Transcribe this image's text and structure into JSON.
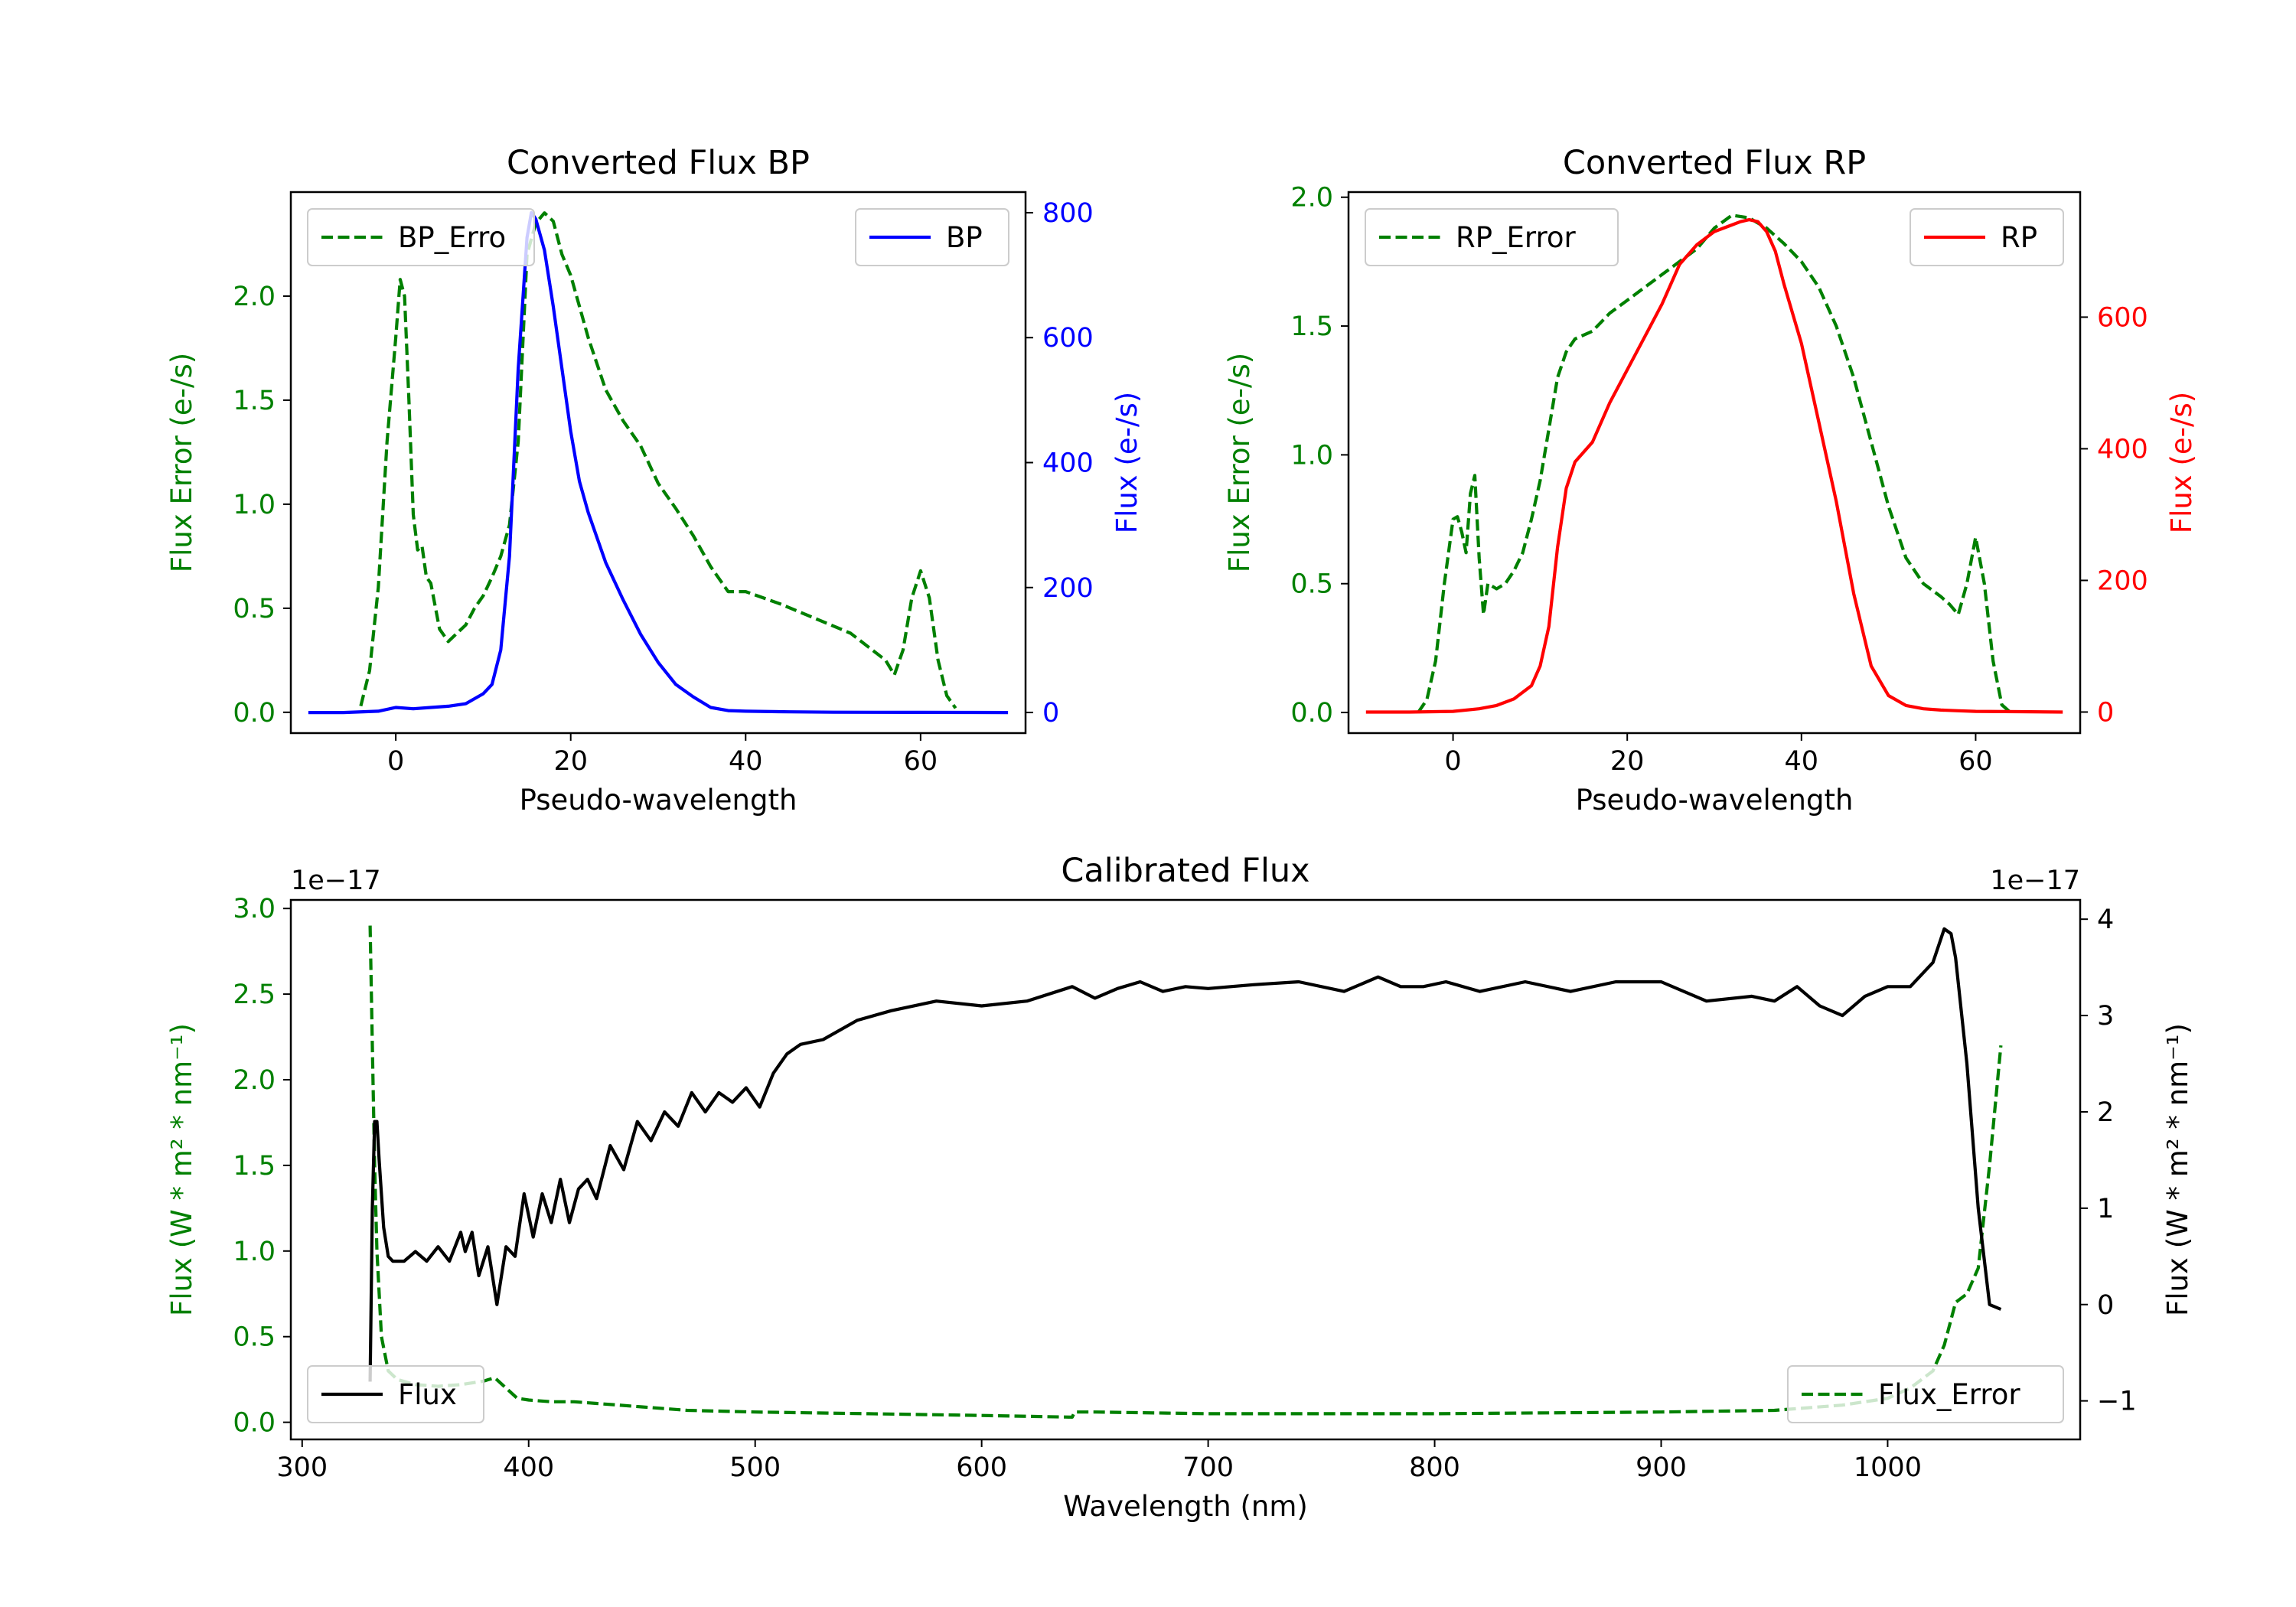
{
  "colors": {
    "error": "#008000",
    "bp": "#0000ff",
    "rp": "#ff0000",
    "flux": "#000000"
  },
  "chart_data": [
    {
      "type": "line",
      "title": "Converted Flux BP",
      "xlabel": "Pseudo-wavelength",
      "xlim": [
        -12,
        72
      ],
      "xticks": [
        0,
        20,
        40,
        60
      ],
      "left_axis": {
        "label": "Flux Error (e-/s)",
        "ylim": [
          -0.1,
          2.5
        ],
        "ticks": [
          0.0,
          0.5,
          1.0,
          1.5,
          2.0
        ],
        "tick_labels": [
          "0.0",
          "0.5",
          "1.0",
          "1.5",
          "2.0"
        ]
      },
      "right_axis": {
        "label": "Flux (e-/s)",
        "ylim": [
          -33,
          833
        ],
        "ticks": [
          0,
          200,
          400,
          600,
          800
        ],
        "tick_labels": [
          "0",
          "200",
          "400",
          "600",
          "800"
        ]
      },
      "series": [
        {
          "name": "BP_Error",
          "legend_label": "BP_Erro",
          "axis": "left",
          "style": "dashed",
          "color": "#008000",
          "x": [
            -4,
            -3,
            -2,
            -1,
            0,
            0.5,
            1,
            1.5,
            2,
            2.5,
            3,
            3.5,
            4,
            5,
            6,
            7,
            8,
            9,
            10,
            11,
            12,
            13,
            14,
            15,
            16,
            17,
            18,
            19,
            20,
            22,
            24,
            26,
            28,
            30,
            32,
            34,
            36,
            38,
            40,
            44,
            48,
            52,
            56,
            57,
            58,
            59,
            60,
            61,
            62,
            63,
            64
          ],
          "y": [
            0.03,
            0.2,
            0.6,
            1.3,
            1.8,
            2.08,
            2.0,
            1.5,
            0.95,
            0.78,
            0.8,
            0.65,
            0.62,
            0.4,
            0.34,
            0.38,
            0.42,
            0.5,
            0.56,
            0.65,
            0.75,
            0.9,
            1.3,
            2.2,
            2.35,
            2.4,
            2.36,
            2.2,
            2.1,
            1.8,
            1.55,
            1.4,
            1.28,
            1.1,
            0.98,
            0.85,
            0.7,
            0.58,
            0.58,
            0.52,
            0.45,
            0.38,
            0.25,
            0.18,
            0.3,
            0.55,
            0.68,
            0.55,
            0.25,
            0.08,
            0.02
          ]
        },
        {
          "name": "BP",
          "legend_label": "BP",
          "axis": "right",
          "style": "solid",
          "color": "#0000ff",
          "x": [
            -10,
            -6,
            -2,
            0,
            2,
            4,
            6,
            8,
            10,
            11,
            12,
            13,
            14,
            15,
            15.5,
            16,
            17,
            18,
            19,
            20,
            21,
            22,
            24,
            26,
            28,
            30,
            32,
            34,
            36,
            38,
            40,
            45,
            50,
            55,
            60,
            65,
            70
          ],
          "y": [
            0,
            0,
            2,
            8,
            6,
            8,
            10,
            14,
            30,
            45,
            100,
            250,
            550,
            760,
            800,
            790,
            740,
            650,
            550,
            450,
            370,
            320,
            240,
            180,
            125,
            80,
            45,
            25,
            8,
            3,
            2,
            1,
            0.5,
            0.3,
            0.2,
            0.1,
            0
          ]
        }
      ],
      "legends": {
        "left": "upper left",
        "right": "upper right"
      }
    },
    {
      "type": "line",
      "title": "Converted Flux RP",
      "xlabel": "Pseudo-wavelength",
      "xlim": [
        -12,
        72
      ],
      "xticks": [
        0,
        20,
        40,
        60
      ],
      "left_axis": {
        "label": "Flux Error (e-/s)",
        "ylim": [
          -0.08,
          2.02
        ],
        "ticks": [
          0.0,
          0.5,
          1.0,
          1.5,
          2.0
        ],
        "tick_labels": [
          "0.0",
          "0.5",
          "1.0",
          "1.5",
          "2.0"
        ]
      },
      "right_axis": {
        "label": "Flux (e-/s)",
        "ylim": [
          -32,
          790
        ],
        "ticks": [
          0,
          200,
          400,
          600
        ],
        "tick_labels": [
          "0",
          "200",
          "400",
          "600"
        ]
      },
      "series": [
        {
          "name": "RP_Error",
          "legend_label": "RP_Error",
          "axis": "left",
          "style": "dashed",
          "color": "#008000",
          "x": [
            -4,
            -3,
            -2,
            -1,
            0,
            0.5,
            1,
            1.5,
            2,
            2.5,
            3,
            3.5,
            4,
            5,
            6,
            7,
            8,
            9,
            10,
            11,
            12,
            13,
            14,
            16,
            18,
            20,
            24,
            28,
            30,
            32,
            34,
            36,
            38,
            40,
            42,
            44,
            46,
            48,
            50,
            52,
            54,
            56,
            57,
            58,
            59,
            60,
            61,
            62,
            63,
            64
          ],
          "y": [
            0.0,
            0.05,
            0.2,
            0.5,
            0.75,
            0.76,
            0.7,
            0.62,
            0.85,
            0.92,
            0.6,
            0.38,
            0.5,
            0.48,
            0.5,
            0.55,
            0.62,
            0.75,
            0.9,
            1.1,
            1.3,
            1.4,
            1.45,
            1.48,
            1.55,
            1.6,
            1.7,
            1.8,
            1.88,
            1.93,
            1.92,
            1.88,
            1.82,
            1.75,
            1.65,
            1.5,
            1.3,
            1.05,
            0.8,
            0.6,
            0.5,
            0.45,
            0.42,
            0.38,
            0.5,
            0.68,
            0.5,
            0.2,
            0.03,
            0.0
          ]
        },
        {
          "name": "RP",
          "legend_label": "RP",
          "axis": "right",
          "style": "solid",
          "color": "#ff0000",
          "x": [
            -10,
            -5,
            0,
            3,
            5,
            7,
            9,
            10,
            11,
            12,
            13,
            14,
            16,
            18,
            20,
            22,
            24,
            26,
            28,
            30,
            32,
            33,
            34,
            35,
            36,
            37,
            38,
            40,
            42,
            44,
            46,
            48,
            50,
            52,
            54,
            56,
            58,
            60,
            65,
            70
          ],
          "y": [
            0,
            0,
            1,
            5,
            10,
            20,
            40,
            70,
            130,
            250,
            340,
            380,
            410,
            470,
            520,
            570,
            620,
            680,
            710,
            730,
            740,
            745,
            748,
            745,
            730,
            700,
            650,
            560,
            440,
            320,
            180,
            70,
            25,
            10,
            5,
            3,
            2,
            1,
            0.5,
            0
          ]
        }
      ],
      "legends": {
        "left": "upper left",
        "right": "upper right"
      }
    },
    {
      "type": "line",
      "title": "Calibrated Flux",
      "xlabel": "Wavelength (nm)",
      "xlim": [
        295,
        1085
      ],
      "xticks": [
        300,
        400,
        500,
        600,
        700,
        800,
        900,
        1000
      ],
      "left_axis": {
        "label": "Flux (W * m² * nm⁻¹)",
        "offset_text": "1e−17",
        "ylim": [
          -0.1,
          3.05
        ],
        "ticks": [
          0.0,
          0.5,
          1.0,
          1.5,
          2.0,
          2.5,
          3.0
        ],
        "tick_labels": [
          "0.0",
          "0.5",
          "1.0",
          "1.5",
          "2.0",
          "2.5",
          "3.0"
        ]
      },
      "right_axis": {
        "label": "Flux (W * m² * nm⁻¹)",
        "offset_text": "1e−17",
        "ylim": [
          -1.4,
          4.2
        ],
        "ticks": [
          -1,
          0,
          1,
          2,
          3,
          4
        ],
        "tick_labels": [
          "−1",
          "0",
          "1",
          "2",
          "3",
          "4"
        ]
      },
      "series": [
        {
          "name": "Flux_Error",
          "legend_label": "Flux_Error",
          "axis": "left",
          "style": "dashed",
          "color": "#008000",
          "x": [
            330,
            331,
            332,
            333,
            335,
            338,
            342,
            350,
            360,
            370,
            380,
            385,
            390,
            395,
            400,
            410,
            420,
            430,
            440,
            450,
            470,
            500,
            550,
            600,
            640,
            641,
            650,
            700,
            800,
            900,
            950,
            980,
            1000,
            1010,
            1020,
            1025,
            1030,
            1035,
            1040,
            1045,
            1050
          ],
          "y": [
            2.9,
            2.2,
            1.5,
            1.0,
            0.5,
            0.3,
            0.25,
            0.22,
            0.21,
            0.22,
            0.24,
            0.26,
            0.2,
            0.14,
            0.13,
            0.12,
            0.12,
            0.11,
            0.1,
            0.09,
            0.07,
            0.06,
            0.05,
            0.04,
            0.03,
            0.06,
            0.06,
            0.05,
            0.05,
            0.06,
            0.07,
            0.1,
            0.14,
            0.2,
            0.3,
            0.45,
            0.7,
            0.75,
            0.9,
            1.5,
            2.2
          ]
        },
        {
          "name": "Flux",
          "legend_label": "Flux",
          "axis": "right",
          "style": "solid",
          "color": "#000000",
          "x": [
            330,
            331,
            332,
            333,
            334,
            336,
            338,
            340,
            345,
            350,
            355,
            360,
            365,
            370,
            372,
            375,
            378,
            382,
            386,
            390,
            394,
            398,
            402,
            406,
            410,
            414,
            418,
            422,
            426,
            430,
            436,
            442,
            448,
            454,
            460,
            466,
            472,
            478,
            484,
            490,
            496,
            502,
            508,
            514,
            520,
            530,
            545,
            560,
            580,
            600,
            620,
            640,
            650,
            660,
            670,
            680,
            690,
            700,
            720,
            740,
            760,
            775,
            785,
            795,
            805,
            820,
            840,
            860,
            880,
            900,
            920,
            940,
            950,
            960,
            970,
            980,
            990,
            1000,
            1010,
            1020,
            1025,
            1028,
            1030,
            1035,
            1040,
            1045,
            1050
          ],
          "y": [
            -0.8,
            1.0,
            1.9,
            1.9,
            1.5,
            0.8,
            0.5,
            0.45,
            0.45,
            0.55,
            0.45,
            0.6,
            0.45,
            0.75,
            0.55,
            0.75,
            0.3,
            0.6,
            0.0,
            0.6,
            0.5,
            1.15,
            0.7,
            1.15,
            0.85,
            1.3,
            0.85,
            1.2,
            1.3,
            1.1,
            1.65,
            1.4,
            1.9,
            1.7,
            2.0,
            1.85,
            2.2,
            2.0,
            2.2,
            2.1,
            2.25,
            2.05,
            2.4,
            2.6,
            2.7,
            2.75,
            2.95,
            3.05,
            3.15,
            3.1,
            3.15,
            3.3,
            3.18,
            3.28,
            3.35,
            3.25,
            3.3,
            3.28,
            3.32,
            3.35,
            3.25,
            3.4,
            3.3,
            3.3,
            3.35,
            3.25,
            3.35,
            3.25,
            3.35,
            3.35,
            3.15,
            3.2,
            3.15,
            3.3,
            3.1,
            3.0,
            3.2,
            3.3,
            3.3,
            3.55,
            3.9,
            3.85,
            3.6,
            2.5,
            1.0,
            0.0,
            -0.05
          ]
        }
      ],
      "legends": {
        "left": "lower left",
        "right": "lower right"
      }
    }
  ]
}
